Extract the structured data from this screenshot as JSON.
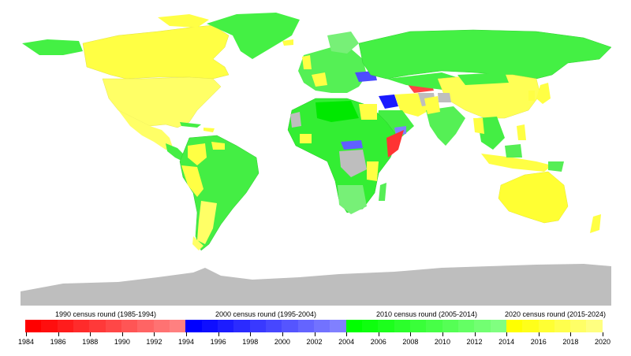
{
  "legend": {
    "rounds": [
      {
        "label": "1990 census round (1985-1994)",
        "color_start": "#ff0000",
        "color_end": "#ff8080"
      },
      {
        "label": "2000 census round (1995-2004)",
        "color_start": "#0000ff",
        "color_end": "#8080ff"
      },
      {
        "label": "2010 census round (2005-2014)",
        "color_start": "#00ff00",
        "color_end": "#80ff80"
      },
      {
        "label": "2020 census round (2015-2024)",
        "color_start": "#ffff00",
        "color_end": "#ffff80"
      }
    ],
    "ticks": [
      "1984",
      "1986",
      "1988",
      "1990",
      "1992",
      "1994",
      "1996",
      "1998",
      "2000",
      "2002",
      "2004",
      "2006",
      "2008",
      "2010",
      "2012",
      "2014",
      "2016",
      "2018",
      "2020"
    ]
  },
  "colors": {
    "no_data": "#bebebe",
    "ocean": "#ffffff",
    "r1990": "#ff4040",
    "r2000": "#3030ff",
    "r2000_light": "#7070ff",
    "r2010": "#33ee33",
    "r2010_light": "#77f777",
    "r2020": "#ffff33"
  }
}
